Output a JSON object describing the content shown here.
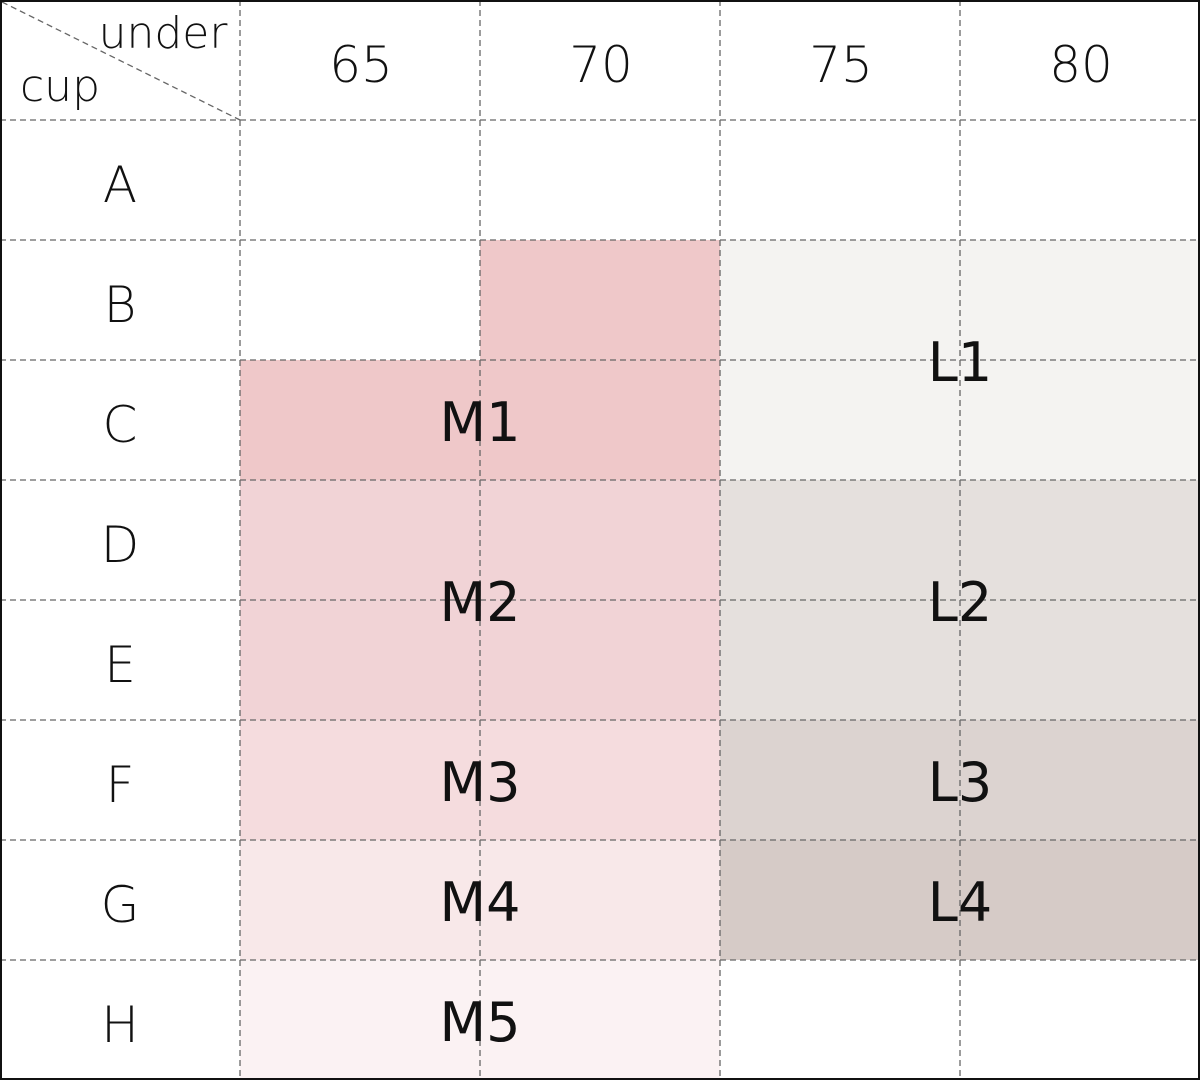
{
  "table": {
    "corner_top_label": "under",
    "corner_bottom_label": "cup",
    "band_sizes": [
      "65",
      "70",
      "75",
      "80"
    ],
    "cup_sizes": [
      "A",
      "B",
      "C",
      "D",
      "E",
      "F",
      "G",
      "H"
    ]
  },
  "zones": [
    {
      "label": "M1",
      "color": "#efc8c9"
    },
    {
      "label": "M2",
      "color": "#f1d3d6"
    },
    {
      "label": "M3",
      "color": "#f5dcde"
    },
    {
      "label": "M4",
      "color": "#f8e8e9"
    },
    {
      "label": "M5",
      "color": "#fbf2f3"
    },
    {
      "label": "L1",
      "color": "#f4f3f1"
    },
    {
      "label": "L2",
      "color": "#e5e0dd"
    },
    {
      "label": "L3",
      "color": "#dcd3d0"
    },
    {
      "label": "L4",
      "color": "#d6cbc7"
    }
  ],
  "colors": {
    "grid_line": "#666666",
    "border": "#111111",
    "text": "#111111"
  }
}
